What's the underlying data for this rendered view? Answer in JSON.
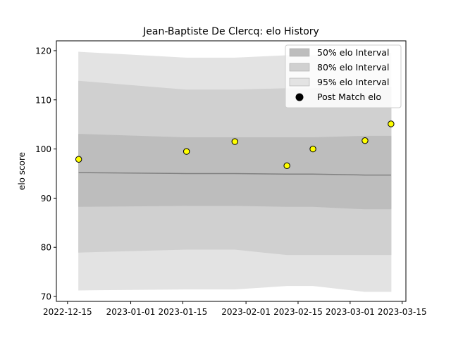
{
  "chart_data": {
    "type": "scatter",
    "title": "Jean-Baptiste De Clercq: elo History",
    "xlabel": "",
    "ylabel": "elo score",
    "xlim": [
      "2022-12-12",
      "2023-03-16"
    ],
    "ylim": [
      69,
      122
    ],
    "x_ticks": [
      "2022-12-15",
      "2023-01-01",
      "2023-01-15",
      "2023-02-01",
      "2023-02-15",
      "2023-03-01",
      "2023-03-15"
    ],
    "y_ticks": [
      70,
      80,
      90,
      100,
      110,
      120
    ],
    "grid": false,
    "legend_position": "upper right",
    "x": [
      "2022-12-18",
      "2023-01-16",
      "2023-01-29",
      "2023-02-12",
      "2023-02-19",
      "2023-03-05",
      "2023-03-12"
    ],
    "bands": [
      {
        "name": "95% elo Interval",
        "color": "#e3e3e3",
        "lower": [
          71.3,
          71.5,
          71.5,
          72.2,
          72.2,
          71.0,
          71.0
        ],
        "upper": [
          119.7,
          118.5,
          118.5,
          119.0,
          119.0,
          119.5,
          119.5
        ]
      },
      {
        "name": "80% elo Interval",
        "color": "#d0d0d0",
        "lower": [
          79.0,
          79.6,
          79.6,
          78.5,
          78.5,
          78.5,
          78.5
        ],
        "upper": [
          113.8,
          112.0,
          112.0,
          112.3,
          112.3,
          112.5,
          112.5
        ]
      },
      {
        "name": "50% elo Interval",
        "color": "#bdbdbd",
        "lower": [
          88.3,
          88.5,
          88.5,
          88.3,
          88.3,
          87.8,
          87.8
        ],
        "upper": [
          103.0,
          102.3,
          102.3,
          102.3,
          102.3,
          102.6,
          102.6
        ]
      }
    ],
    "mean_line": {
      "color": "#808080",
      "values": [
        95.2,
        95.0,
        95.0,
        94.9,
        94.9,
        94.7,
        94.7
      ]
    },
    "series": [
      {
        "name": "Post Match elo",
        "marker_color": "#ffff00",
        "edge_color": "#000000",
        "values": [
          97.9,
          99.5,
          101.5,
          96.6,
          100.0,
          101.7,
          105.1
        ]
      }
    ]
  }
}
